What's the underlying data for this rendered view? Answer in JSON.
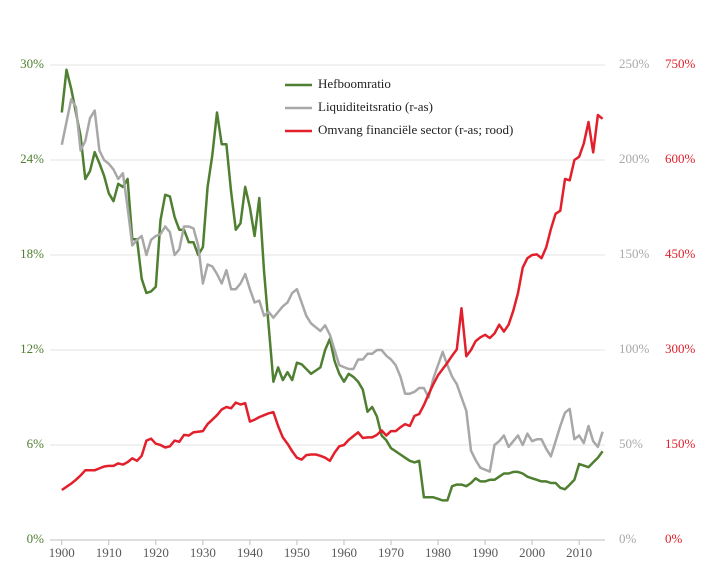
{
  "chart_data": {
    "type": "line",
    "x": [
      1900,
      1901,
      1902,
      1903,
      1904,
      1905,
      1906,
      1907,
      1908,
      1909,
      1910,
      1911,
      1912,
      1913,
      1914,
      1915,
      1916,
      1917,
      1918,
      1919,
      1920,
      1921,
      1922,
      1923,
      1924,
      1925,
      1926,
      1927,
      1928,
      1929,
      1930,
      1931,
      1932,
      1933,
      1934,
      1935,
      1936,
      1937,
      1938,
      1939,
      1940,
      1941,
      1942,
      1943,
      1944,
      1945,
      1946,
      1947,
      1948,
      1949,
      1950,
      1951,
      1952,
      1953,
      1954,
      1955,
      1956,
      1957,
      1958,
      1959,
      1960,
      1961,
      1962,
      1963,
      1964,
      1965,
      1966,
      1967,
      1968,
      1969,
      1970,
      1971,
      1972,
      1973,
      1974,
      1975,
      1976,
      1977,
      1978,
      1979,
      1980,
      1981,
      1982,
      1983,
      1984,
      1985,
      1986,
      1987,
      1988,
      1989,
      1990,
      1991,
      1992,
      1993,
      1994,
      1995,
      1996,
      1997,
      1998,
      1999,
      2000,
      2001,
      2002,
      2003,
      2004,
      2005,
      2006,
      2007,
      2008,
      2009,
      2010,
      2011,
      2012,
      2013,
      2014,
      2015
    ],
    "xlim": [
      1897.5,
      2015.5
    ],
    "xticks": [
      1900,
      1910,
      1920,
      1930,
      1940,
      1950,
      1960,
      1970,
      1980,
      1990,
      2000,
      2010
    ],
    "ylim": [
      0,
      30
    ],
    "yticks": [
      {
        "value": 0,
        "label": "0%"
      },
      {
        "value": 6,
        "label": "6%"
      },
      {
        "value": 12,
        "label": "12%"
      },
      {
        "value": 18,
        "label": "18%"
      },
      {
        "value": 24,
        "label": "24%"
      },
      {
        "value": 30,
        "label": "30%"
      }
    ],
    "y2lim": [
      0,
      250
    ],
    "y2ticks": [
      {
        "value": 0,
        "label": "0%"
      },
      {
        "value": 50,
        "label": "50%"
      },
      {
        "value": 100,
        "label": "100%"
      },
      {
        "value": 150,
        "label": "150%"
      },
      {
        "value": 200,
        "label": "200%"
      },
      {
        "value": 250,
        "label": "250%"
      }
    ],
    "y3lim": [
      0,
      750
    ],
    "y3ticks": [
      {
        "value": 0,
        "label": "0%"
      },
      {
        "value": 150,
        "label": "150%"
      },
      {
        "value": 300,
        "label": "300%"
      },
      {
        "value": 450,
        "label": "450%"
      },
      {
        "value": 600,
        "label": "600%"
      },
      {
        "value": 750,
        "label": "750%"
      }
    ],
    "grid": true,
    "legend": "upper center",
    "series": [
      {
        "name": "Hefboomratio",
        "color": "#4f7f31",
        "axis": "y",
        "values": [
          27,
          29.7,
          28.5,
          27,
          25.5,
          22.8,
          23.3,
          24.5,
          23.8,
          23,
          21.9,
          21.4,
          22.5,
          22.3,
          22.8,
          19,
          19,
          16.5,
          15.6,
          15.7,
          16,
          20.2,
          21.8,
          21.7,
          20.4,
          19.6,
          19.6,
          18.8,
          18.8,
          18,
          18.5,
          22.3,
          24.3,
          27,
          25,
          25,
          22,
          19.6,
          20,
          22.3,
          21,
          19.2,
          21.6,
          17,
          13.5,
          10,
          10.9,
          10.1,
          10.6,
          10.1,
          11.2,
          11.1,
          10.8,
          10.5,
          10.7,
          10.9,
          12,
          12.7,
          11.3,
          10.5,
          10,
          10.5,
          10.3,
          10,
          9.5,
          8.1,
          8.4,
          7.8,
          6.6,
          6.3,
          5.8,
          5.6,
          5.4,
          5.2,
          5,
          4.9,
          5,
          2.7,
          2.7,
          2.7,
          2.6,
          2.5,
          2.5,
          3.4,
          3.5,
          3.5,
          3.4,
          3.6,
          3.9,
          3.7,
          3.7,
          3.8,
          3.8,
          4,
          4.2,
          4.2,
          4.3,
          4.3,
          4.2,
          4,
          3.9,
          3.8,
          3.7,
          3.7,
          3.6,
          3.6,
          3.3,
          3.2,
          3.5,
          3.8,
          4.8,
          4.7,
          4.6,
          4.9,
          5.2,
          5.6
        ]
      },
      {
        "name": "Liquiditeitsratio (r-as)",
        "color": "#a8a8a8",
        "axis": "y2",
        "values": [
          208,
          220,
          232,
          228,
          205,
          210,
          222,
          226,
          205,
          200,
          198,
          195,
          190,
          193,
          175,
          155,
          158,
          160,
          150,
          158,
          160,
          161,
          165,
          162,
          150,
          153,
          165,
          165,
          164,
          155,
          135,
          145,
          144,
          140,
          135,
          142,
          132,
          132,
          135,
          140,
          132,
          125,
          126,
          118,
          120,
          117,
          120,
          123,
          125,
          130,
          132,
          125,
          118,
          114,
          112,
          110,
          113,
          108,
          100,
          92,
          91,
          90,
          90,
          95,
          95,
          98,
          98,
          100,
          100,
          97,
          95,
          92,
          86,
          77,
          77,
          78,
          80,
          80,
          75,
          85,
          92,
          99,
          92,
          86,
          82,
          75,
          68,
          47,
          42,
          38,
          37,
          36,
          50,
          52,
          55,
          49,
          52,
          55,
          50,
          56,
          52,
          53,
          53,
          48,
          44,
          52,
          60,
          67,
          69,
          53,
          55,
          51,
          60,
          52,
          49,
          57
        ]
      },
      {
        "name": "Omvang financiële sector (r-as; rood)",
        "color": "#e2202b",
        "axis": "y3",
        "values": [
          79,
          84,
          89,
          95,
          102,
          110,
          110,
          110,
          113,
          116,
          117,
          117,
          121,
          119,
          123,
          129,
          125,
          133,
          157,
          160,
          152,
          150,
          146,
          148,
          157,
          155,
          166,
          165,
          170,
          171,
          172,
          183,
          190,
          197,
          206,
          210,
          208,
          217,
          214,
          216,
          187,
          190,
          194,
          197,
          200,
          202,
          180,
          162,
          152,
          140,
          130,
          127,
          134,
          135,
          135,
          133,
          130,
          125,
          138,
          148,
          150,
          158,
          164,
          170,
          161,
          162,
          162,
          166,
          173,
          165,
          172,
          172,
          178,
          183,
          180,
          196,
          199,
          213,
          230,
          246,
          260,
          270,
          280,
          291,
          301,
          366,
          290,
          300,
          314,
          320,
          324,
          319,
          326,
          340,
          329,
          340,
          362,
          390,
          430,
          445,
          450,
          451,
          445,
          462,
          491,
          515,
          520,
          570,
          568,
          600,
          605,
          626,
          660,
          612,
          671,
          665
        ]
      }
    ]
  }
}
